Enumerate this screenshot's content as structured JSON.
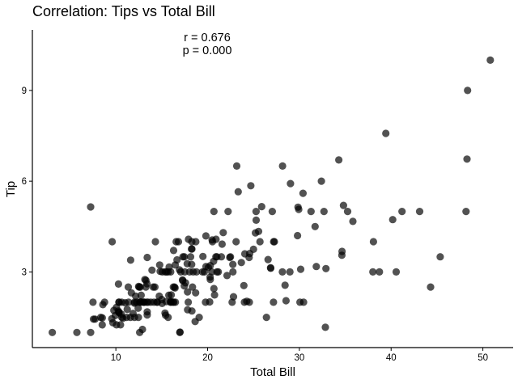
{
  "chart_data": {
    "type": "scatter",
    "title": "Correlation: Tips vs Total Bill",
    "xlabel": "Total Bill",
    "ylabel": "Tip",
    "xlim": [
      0.9,
      53.3
    ],
    "ylim": [
      0.5,
      11.0
    ],
    "xticks": [
      10,
      20,
      30,
      40,
      50
    ],
    "yticks": [
      3,
      6,
      9
    ],
    "grid": false,
    "annotations": [
      "r = 0.676",
      "p = 0.000"
    ],
    "point_color": "#000000",
    "points": [
      [
        3.07,
        1.0
      ],
      [
        5.75,
        1.0
      ],
      [
        7.25,
        1.0
      ],
      [
        7.25,
        5.15
      ],
      [
        7.51,
        2.0
      ],
      [
        7.56,
        1.44
      ],
      [
        7.74,
        1.44
      ],
      [
        8.35,
        1.5
      ],
      [
        8.51,
        1.25
      ],
      [
        8.52,
        1.48
      ],
      [
        8.58,
        1.92
      ],
      [
        8.77,
        2.0
      ],
      [
        9.55,
        1.45
      ],
      [
        9.6,
        4.0
      ],
      [
        9.68,
        1.32
      ],
      [
        9.78,
        1.73
      ],
      [
        9.94,
        1.56
      ],
      [
        10.07,
        1.25
      ],
      [
        10.07,
        1.83
      ],
      [
        10.27,
        1.71
      ],
      [
        10.29,
        2.6
      ],
      [
        10.33,
        1.67
      ],
      [
        10.33,
        2.0
      ],
      [
        10.34,
        1.66
      ],
      [
        10.34,
        2.0
      ],
      [
        10.51,
        1.25
      ],
      [
        10.59,
        1.61
      ],
      [
        10.63,
        2.0
      ],
      [
        10.65,
        1.5
      ],
      [
        10.77,
        1.47
      ],
      [
        11.02,
        1.98
      ],
      [
        11.17,
        1.5
      ],
      [
        11.24,
        1.76
      ],
      [
        11.35,
        2.5
      ],
      [
        11.38,
        2.0
      ],
      [
        11.59,
        1.5
      ],
      [
        11.61,
        3.39
      ],
      [
        11.69,
        2.31
      ],
      [
        11.87,
        1.63
      ],
      [
        12.02,
        1.97
      ],
      [
        12.03,
        1.5
      ],
      [
        12.03,
        2.0
      ],
      [
        12.16,
        2.2
      ],
      [
        12.26,
        2.0
      ],
      [
        12.43,
        1.8
      ],
      [
        12.46,
        1.5
      ],
      [
        12.48,
        2.52
      ],
      [
        12.54,
        2.5
      ],
      [
        12.6,
        1.0
      ],
      [
        12.6,
        2.0
      ],
      [
        12.66,
        2.5
      ],
      [
        12.69,
        2.0
      ],
      [
        12.74,
        2.01
      ],
      [
        12.76,
        2.23
      ],
      [
        12.9,
        1.1
      ],
      [
        13.0,
        2.0
      ],
      [
        13.03,
        2.0
      ],
      [
        13.13,
        2.0
      ],
      [
        13.16,
        2.75
      ],
      [
        13.27,
        2.5
      ],
      [
        13.28,
        2.72
      ],
      [
        13.37,
        2.0
      ],
      [
        13.39,
        2.61
      ],
      [
        13.42,
        1.58
      ],
      [
        13.42,
        3.48
      ],
      [
        13.42,
        1.68
      ],
      [
        13.51,
        2.0
      ],
      [
        13.81,
        2.0
      ],
      [
        13.94,
        3.06
      ],
      [
        14.07,
        2.5
      ],
      [
        14.15,
        2.0
      ],
      [
        14.26,
        2.5
      ],
      [
        14.31,
        4.0
      ],
      [
        14.48,
        2.0
      ],
      [
        14.52,
        2.0
      ],
      [
        14.73,
        2.2
      ],
      [
        14.78,
        3.23
      ],
      [
        14.83,
        3.02
      ],
      [
        15.01,
        2.09
      ],
      [
        15.04,
        1.96
      ],
      [
        15.06,
        3.0
      ],
      [
        15.36,
        1.64
      ],
      [
        15.38,
        3.0
      ],
      [
        15.42,
        1.57
      ],
      [
        15.48,
        2.02
      ],
      [
        15.53,
        3.0
      ],
      [
        15.69,
        1.5
      ],
      [
        15.69,
        3.0
      ],
      [
        15.77,
        2.23
      ],
      [
        15.81,
        3.16
      ],
      [
        15.95,
        2.0
      ],
      [
        15.98,
        2.03
      ],
      [
        15.98,
        3.0
      ],
      [
        16.0,
        2.0
      ],
      [
        16.04,
        2.24
      ],
      [
        16.21,
        2.0
      ],
      [
        16.27,
        2.5
      ],
      [
        16.29,
        3.71
      ],
      [
        16.31,
        2.0
      ],
      [
        16.4,
        2.5
      ],
      [
        16.45,
        2.47
      ],
      [
        16.47,
        3.23
      ],
      [
        16.49,
        2.0
      ],
      [
        16.58,
        4.0
      ],
      [
        16.66,
        3.4
      ],
      [
        16.82,
        4.0
      ],
      [
        16.93,
        3.07
      ],
      [
        16.97,
        1.0
      ],
      [
        16.99,
        1.01
      ],
      [
        17.07,
        3.0
      ],
      [
        17.26,
        2.74
      ],
      [
        17.29,
        2.71
      ],
      [
        17.31,
        3.5
      ],
      [
        17.46,
        2.54
      ],
      [
        17.47,
        3.5
      ],
      [
        17.51,
        3.0
      ],
      [
        17.59,
        2.64
      ],
      [
        17.78,
        3.27
      ],
      [
        17.81,
        2.34
      ],
      [
        17.82,
        1.75
      ],
      [
        17.89,
        2.0
      ],
      [
        17.92,
        4.08
      ],
      [
        18.04,
        3.0
      ],
      [
        18.15,
        3.5
      ],
      [
        18.24,
        3.76
      ],
      [
        18.26,
        3.25
      ],
      [
        18.28,
        4.0
      ],
      [
        18.29,
        3.76
      ],
      [
        18.29,
        1.71
      ],
      [
        18.35,
        2.5
      ],
      [
        18.43,
        3.0
      ],
      [
        18.64,
        1.36
      ],
      [
        18.69,
        2.31
      ],
      [
        18.71,
        4.0
      ],
      [
        18.78,
        3.0
      ],
      [
        19.08,
        1.5
      ],
      [
        19.44,
        3.0
      ],
      [
        19.49,
        3.51
      ],
      [
        19.65,
        3.0
      ],
      [
        19.77,
        2.0
      ],
      [
        19.81,
        4.19
      ],
      [
        19.82,
        3.18
      ],
      [
        20.08,
        3.15
      ],
      [
        20.23,
        2.01
      ],
      [
        20.27,
        2.83
      ],
      [
        20.29,
        2.75
      ],
      [
        20.29,
        3.21
      ],
      [
        20.45,
        3.0
      ],
      [
        20.49,
        4.06
      ],
      [
        20.53,
        4.0
      ],
      [
        20.65,
        3.35
      ],
      [
        20.69,
        5.0
      ],
      [
        20.69,
        2.45
      ],
      [
        20.76,
        2.24
      ],
      [
        20.9,
        3.5
      ],
      [
        20.92,
        4.08
      ],
      [
        21.01,
        3.5
      ],
      [
        21.01,
        3.0
      ],
      [
        21.16,
        3.0
      ],
      [
        21.5,
        3.5
      ],
      [
        21.58,
        3.92
      ],
      [
        21.7,
        4.3
      ],
      [
        22.12,
        2.88
      ],
      [
        22.23,
        5.0
      ],
      [
        22.42,
        3.48
      ],
      [
        22.49,
        3.5
      ],
      [
        22.67,
        2.0
      ],
      [
        22.75,
        3.25
      ],
      [
        22.76,
        3.0
      ],
      [
        22.82,
        2.18
      ],
      [
        23.1,
        4.0
      ],
      [
        23.17,
        6.5
      ],
      [
        23.33,
        5.65
      ],
      [
        23.68,
        3.31
      ],
      [
        23.95,
        2.55
      ],
      [
        24.01,
        2.0
      ],
      [
        24.06,
        3.6
      ],
      [
        24.27,
        2.03
      ],
      [
        24.52,
        3.48
      ],
      [
        24.55,
        2.0
      ],
      [
        24.59,
        3.61
      ],
      [
        24.71,
        5.85
      ],
      [
        25.0,
        3.75
      ],
      [
        25.21,
        4.29
      ],
      [
        25.28,
        5.0
      ],
      [
        25.29,
        4.71
      ],
      [
        25.56,
        4.34
      ],
      [
        25.71,
        4.0
      ],
      [
        25.89,
        5.16
      ],
      [
        26.41,
        1.5
      ],
      [
        26.59,
        3.41
      ],
      [
        26.86,
        3.14
      ],
      [
        26.88,
        3.12
      ],
      [
        27.05,
        5.0
      ],
      [
        27.18,
        2.0
      ],
      [
        27.2,
        4.0
      ],
      [
        27.28,
        4.0
      ],
      [
        28.15,
        3.0
      ],
      [
        28.17,
        6.5
      ],
      [
        28.44,
        2.56
      ],
      [
        28.55,
        2.05
      ],
      [
        28.97,
        3.0
      ],
      [
        29.03,
        5.92
      ],
      [
        29.8,
        4.2
      ],
      [
        29.85,
        5.14
      ],
      [
        29.93,
        5.07
      ],
      [
        30.06,
        2.0
      ],
      [
        30.14,
        3.09
      ],
      [
        30.4,
        5.6
      ],
      [
        30.46,
        2.0
      ],
      [
        31.27,
        5.0
      ],
      [
        31.71,
        4.5
      ],
      [
        31.85,
        3.18
      ],
      [
        32.4,
        6.0
      ],
      [
        32.68,
        5.0
      ],
      [
        32.83,
        1.17
      ],
      [
        32.9,
        3.11
      ],
      [
        34.3,
        6.7
      ],
      [
        34.63,
        3.55
      ],
      [
        34.65,
        3.68
      ],
      [
        34.81,
        5.2
      ],
      [
        35.26,
        5.0
      ],
      [
        35.83,
        4.67
      ],
      [
        38.01,
        3.0
      ],
      [
        38.07,
        4.0
      ],
      [
        38.73,
        3.0
      ],
      [
        39.42,
        7.58
      ],
      [
        40.17,
        4.73
      ],
      [
        40.55,
        3.0
      ],
      [
        41.19,
        5.0
      ],
      [
        43.11,
        5.0
      ],
      [
        44.3,
        2.5
      ],
      [
        45.35,
        3.5
      ],
      [
        48.17,
        5.0
      ],
      [
        48.27,
        6.73
      ],
      [
        48.33,
        9.0
      ],
      [
        50.81,
        10.0
      ]
    ]
  }
}
